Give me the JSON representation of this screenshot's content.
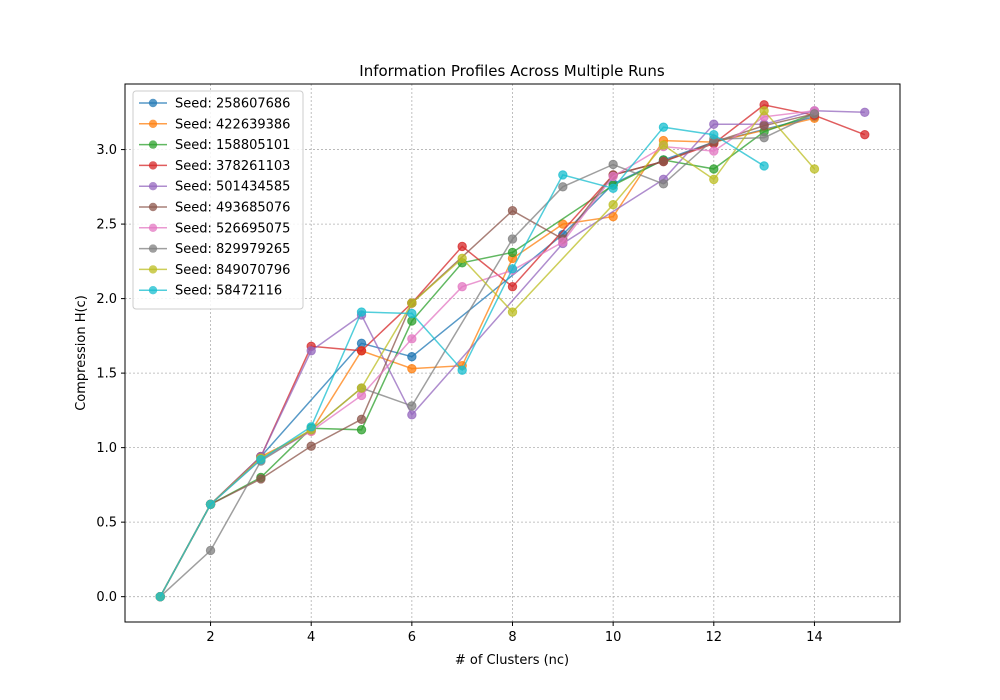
{
  "chart_data": {
    "type": "line",
    "title": "Information Profiles Across Multiple Runs",
    "xlabel": "# of Clusters (nc)",
    "ylabel": "Compression H(c)",
    "xlim": [
      0.3,
      15.7
    ],
    "ylim": [
      -0.17,
      3.44
    ],
    "xticks": [
      2,
      4,
      6,
      8,
      10,
      12,
      14
    ],
    "yticks": [
      0.0,
      0.5,
      1.0,
      1.5,
      2.0,
      2.5,
      3.0
    ],
    "grid": true,
    "legend_position": "top-left",
    "series": [
      {
        "name": "Seed: 258607686",
        "color": "#1f77b4",
        "x": [
          1,
          2,
          3,
          5,
          6,
          9,
          10,
          11,
          12,
          14
        ],
        "y": [
          0.0,
          0.62,
          0.94,
          1.7,
          1.61,
          2.43,
          2.77,
          2.93,
          3.05,
          3.22
        ]
      },
      {
        "name": "Seed: 422639386",
        "color": "#ff7f0e",
        "x": [
          1,
          2,
          3,
          4,
          5,
          6,
          7,
          8,
          9,
          10,
          11,
          12,
          14
        ],
        "y": [
          0.0,
          0.62,
          0.94,
          1.11,
          1.65,
          1.53,
          1.55,
          2.27,
          2.5,
          2.55,
          3.06,
          3.05,
          3.21
        ]
      },
      {
        "name": "Seed: 158805101",
        "color": "#2ca02c",
        "x": [
          1,
          2,
          3,
          4,
          5,
          6,
          7,
          8,
          10,
          11,
          12,
          13,
          14
        ],
        "y": [
          0.0,
          0.62,
          0.8,
          1.13,
          1.12,
          1.85,
          2.24,
          2.31,
          2.76,
          2.93,
          2.87,
          3.12,
          3.24
        ]
      },
      {
        "name": "Seed: 378261103",
        "color": "#d62728",
        "x": [
          1,
          2,
          3,
          4,
          5,
          6,
          7,
          8,
          10,
          11,
          12,
          13,
          14,
          15
        ],
        "y": [
          0.0,
          0.62,
          0.94,
          1.68,
          1.65,
          1.97,
          2.35,
          2.08,
          2.83,
          2.92,
          3.04,
          3.3,
          3.23,
          3.1
        ]
      },
      {
        "name": "Seed: 501434585",
        "color": "#9467bd",
        "x": [
          1,
          2,
          3,
          4,
          5,
          6,
          9,
          11,
          12,
          13,
          14,
          15
        ],
        "y": [
          0.0,
          0.62,
          0.94,
          1.65,
          1.89,
          1.22,
          2.37,
          2.8,
          3.17,
          3.17,
          3.26,
          3.25
        ]
      },
      {
        "name": "Seed: 493685076",
        "color": "#8c564b",
        "x": [
          1,
          2,
          3,
          4,
          5,
          6,
          8,
          9,
          10,
          11,
          12,
          13,
          14
        ],
        "y": [
          0.0,
          0.62,
          0.79,
          1.01,
          1.19,
          1.97,
          2.59,
          2.4,
          2.83,
          2.92,
          3.05,
          3.16,
          3.24
        ]
      },
      {
        "name": "Seed: 526695075",
        "color": "#e377c2",
        "x": [
          1,
          2,
          3,
          4,
          5,
          6,
          7,
          8,
          9,
          10,
          11,
          12,
          13,
          14
        ],
        "y": [
          0.0,
          0.62,
          0.92,
          1.11,
          1.35,
          1.73,
          2.08,
          2.19,
          2.38,
          2.82,
          3.02,
          2.99,
          3.22,
          3.26
        ]
      },
      {
        "name": "Seed: 829979265",
        "color": "#7f7f7f",
        "x": [
          1,
          2,
          3,
          4,
          5,
          6,
          8,
          9,
          10,
          11,
          12,
          13,
          14
        ],
        "y": [
          0.0,
          0.31,
          0.91,
          1.12,
          1.4,
          1.28,
          2.4,
          2.75,
          2.9,
          2.77,
          3.07,
          3.08,
          3.24
        ]
      },
      {
        "name": "Seed: 849070796",
        "color": "#bcbd22",
        "x": [
          1,
          2,
          3,
          4,
          5,
          6,
          7,
          8,
          10,
          11,
          12,
          13,
          14
        ],
        "y": [
          0.0,
          0.62,
          0.93,
          1.12,
          1.4,
          1.97,
          2.27,
          1.91,
          2.63,
          3.03,
          2.8,
          3.26,
          2.87
        ]
      },
      {
        "name": "Seed: 58472116",
        "color": "#17becf",
        "x": [
          1,
          2,
          3,
          4,
          5,
          6,
          7,
          8,
          9,
          10,
          11,
          12,
          13
        ],
        "y": [
          0.0,
          0.62,
          0.92,
          1.14,
          1.91,
          1.9,
          1.52,
          2.2,
          2.83,
          2.74,
          3.15,
          3.1,
          2.89
        ]
      }
    ]
  }
}
